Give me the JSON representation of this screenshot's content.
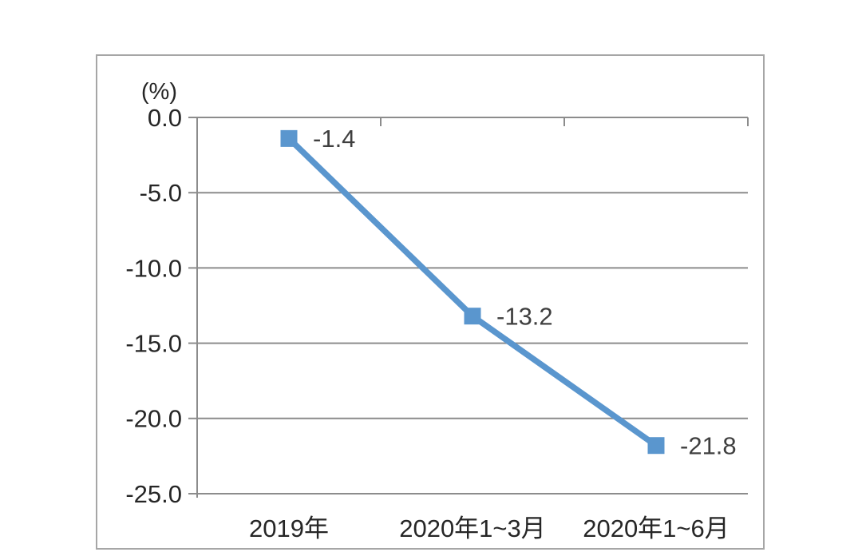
{
  "chart_data": {
    "type": "line",
    "title": "",
    "unit_label": "(%)",
    "categories": [
      "2019年",
      "2020年1~3月",
      "2020年1~6月"
    ],
    "series": [
      {
        "name": "",
        "values": [
          -1.4,
          -13.2,
          -21.8
        ]
      }
    ],
    "data_labels": [
      "-1.4",
      "-13.2",
      "-21.8"
    ],
    "y_ticks": [
      {
        "value": 0,
        "label": "0.0"
      },
      {
        "value": -5,
        "label": "-5.0"
      },
      {
        "value": -10,
        "label": "-10.0"
      },
      {
        "value": -15,
        "label": "-15.0"
      },
      {
        "value": -20,
        "label": "-20.0"
      },
      {
        "value": -25,
        "label": "-25.0"
      }
    ],
    "ylim": [
      -25,
      0
    ],
    "xlabel": "",
    "ylabel": "(%)",
    "grid": true,
    "legend_position": "none",
    "colors": {
      "line": "#5A96CE",
      "marker": "#5A96CE",
      "grid": "#8C8C8C",
      "axis": "#8C8C8C",
      "frame_border": "#A6A6A6",
      "data_label_text": "#3F3F3F",
      "tick_text": "#262626",
      "background": "#FFFFFF"
    }
  }
}
